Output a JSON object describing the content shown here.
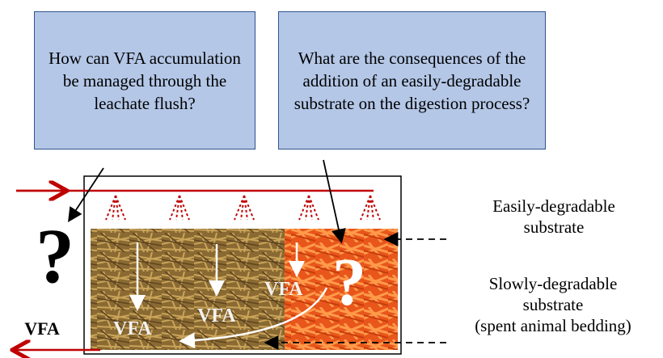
{
  "questions": {
    "q1": "How can VFA accumulation  be managed through the leachate flush?",
    "q2": "What are the consequences of the addition of an easily-degradable  substrate on the digestion process?"
  },
  "labels": {
    "easy_line1": "Easily-degradable",
    "easy_line2": "substrate",
    "slow_line1": "Slowly-degradable",
    "slow_line2": "substrate",
    "slow_line3": "(spent animal bedding)"
  },
  "marks": {
    "question_mark": "?",
    "vfa": "VFA"
  },
  "colors": {
    "box_fill": "#b4c7e7",
    "box_border": "#2f528f",
    "leachate_arrow": "#c00000",
    "straw": "#8a6a32",
    "carrot": "#e8561b"
  },
  "icons": [
    "sprinkler-icon",
    "flow-arrow-icon"
  ]
}
